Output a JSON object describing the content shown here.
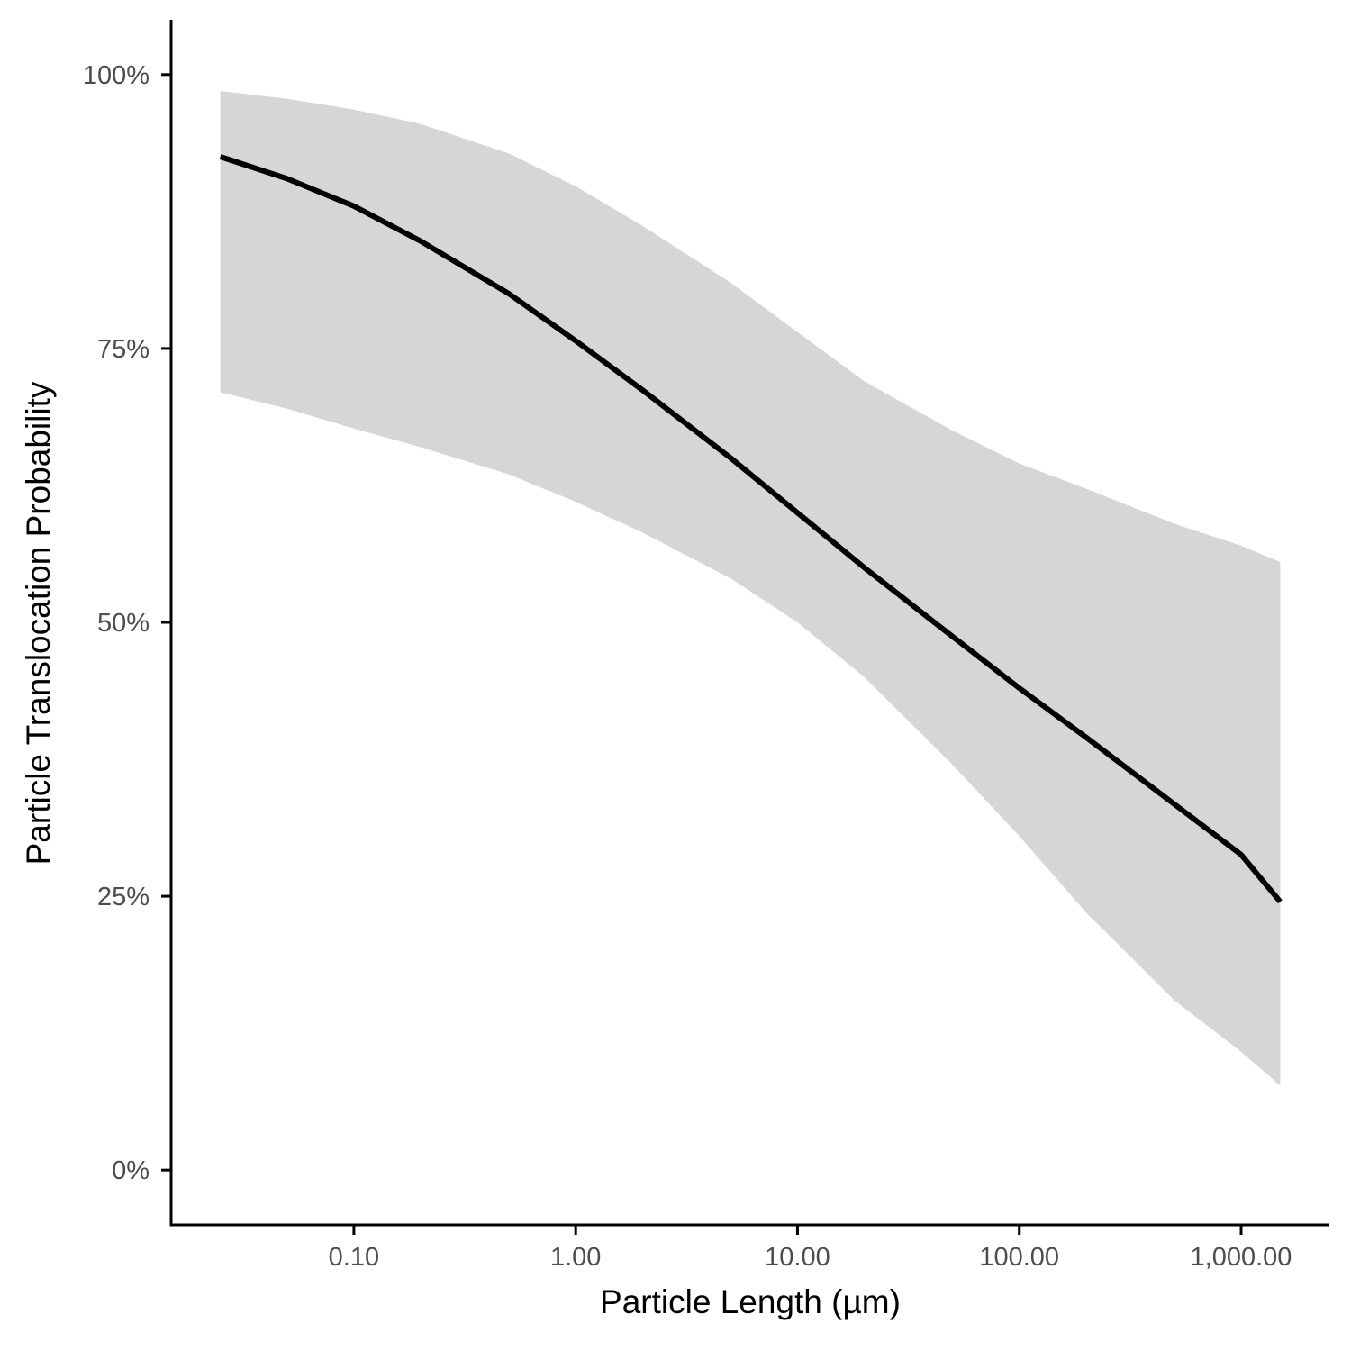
{
  "chart_data": {
    "type": "line",
    "xlabel": "Particle Length (µm)",
    "ylabel": "Particle Translocation Probability",
    "x_scale": "log10",
    "xlim": [
      0.015,
      2500
    ],
    "ylim": [
      -0.05,
      1.05
    ],
    "x_ticks": [
      {
        "value": 0.1,
        "label": "0.10"
      },
      {
        "value": 1,
        "label": "1.00"
      },
      {
        "value": 10,
        "label": "10.00"
      },
      {
        "value": 100,
        "label": "100.00"
      },
      {
        "value": 1000,
        "label": "1,000.00"
      }
    ],
    "y_ticks": [
      {
        "value": 0,
        "label": "0%"
      },
      {
        "value": 0.25,
        "label": "25%"
      },
      {
        "value": 0.5,
        "label": "50%"
      },
      {
        "value": 0.75,
        "label": "75%"
      },
      {
        "value": 1,
        "label": "100%"
      }
    ],
    "grid": false,
    "legend": "none",
    "series": [
      {
        "x": [
          0.025,
          0.05,
          0.1,
          0.2,
          0.5,
          1,
          2,
          5,
          10,
          20,
          50,
          100,
          200,
          500,
          1000,
          1500
        ],
        "y": [
          0.925,
          0.905,
          0.88,
          0.848,
          0.8,
          0.757,
          0.712,
          0.65,
          0.6,
          0.55,
          0.487,
          0.44,
          0.395,
          0.334,
          0.288,
          0.245
        ],
        "lower": [
          0.71,
          0.695,
          0.677,
          0.66,
          0.635,
          0.61,
          0.582,
          0.54,
          0.5,
          0.45,
          0.37,
          0.305,
          0.235,
          0.155,
          0.108,
          0.077
        ],
        "upper": [
          0.985,
          0.978,
          0.968,
          0.955,
          0.928,
          0.898,
          0.862,
          0.81,
          0.765,
          0.72,
          0.675,
          0.645,
          0.622,
          0.59,
          0.57,
          0.555
        ]
      }
    ],
    "colors": {
      "line": "#000000",
      "band": "#d6d6d6",
      "axis": "#000000",
      "tick_label": "#4d4d4d"
    }
  }
}
